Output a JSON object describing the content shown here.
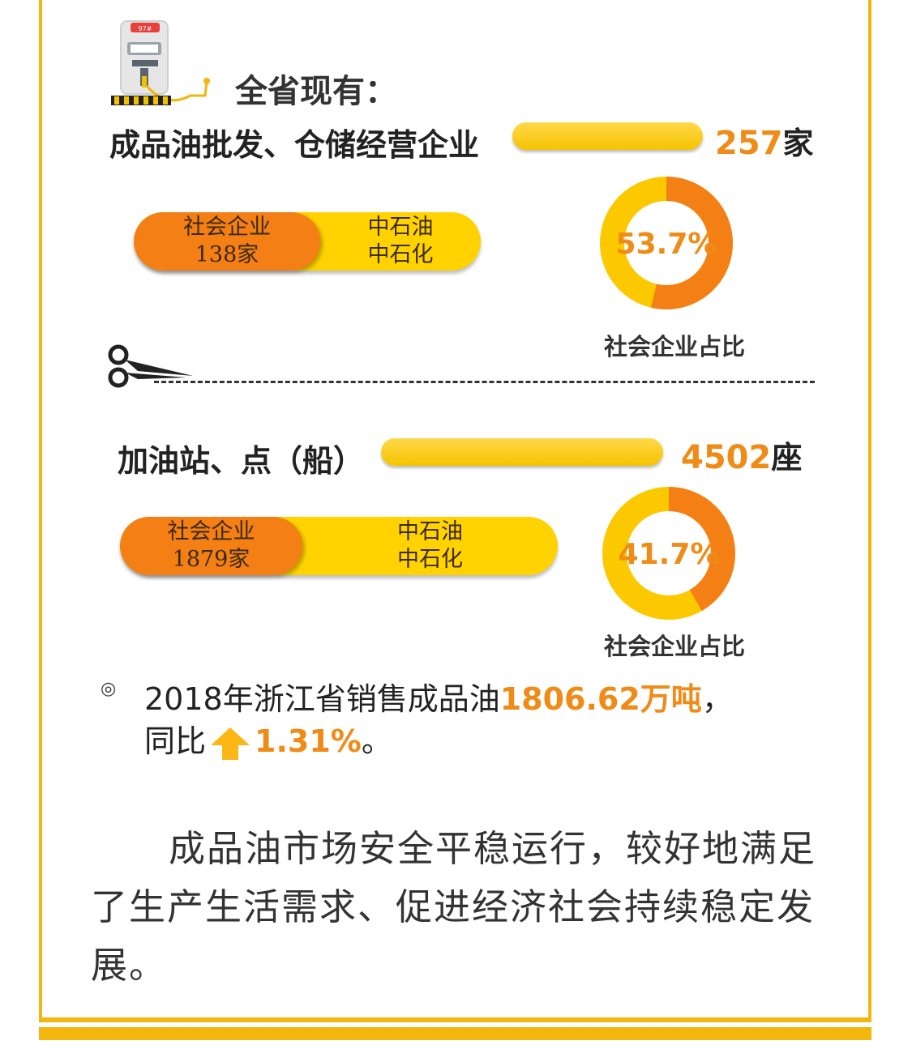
{
  "pump": {
    "sign": "97#"
  },
  "heading": "全省现有：",
  "chart_data": [
    {
      "type": "bar",
      "label": "成品油批发、仓储经营企业",
      "total": 257,
      "total_unit": "家",
      "segments": [
        {
          "name": "社会企业",
          "value": 138,
          "value_label": "138家",
          "color": "#f47f14"
        },
        {
          "name": "中石油中石化",
          "lines": [
            "中石油",
            "中石化"
          ],
          "value": 119,
          "color": "#ffd200"
        }
      ],
      "donut": {
        "percent": 53.7,
        "percent_label": "53.7%",
        "caption": "社会企业占比"
      }
    },
    {
      "type": "bar",
      "label": "加油站、点（船）",
      "total": 4502,
      "total_unit": "座",
      "segments": [
        {
          "name": "社会企业",
          "value": 1879,
          "value_label": "1879家",
          "color": "#f47f14"
        },
        {
          "name": "中石油中石化",
          "lines": [
            "中石油",
            "中石化"
          ],
          "value": 2623,
          "color": "#ffd200"
        }
      ],
      "donut": {
        "percent": 41.7,
        "percent_label": "41.7%",
        "caption": "社会企业占比"
      }
    }
  ],
  "note": {
    "bullet": "◎",
    "prefix": "2018年浙江省销售成品油",
    "amount": "1806.62万吨",
    "suffix": "，",
    "yoy_label": "同比",
    "yoy_value": "1.31%",
    "end": "。"
  },
  "paragraph": "成品油市场安全平稳运行，较好地满足了生产生活需求、促进经济社会持续稳定发展。",
  "colors": {
    "orange": "#f47f14",
    "yellow": "#ffd200",
    "text_orange": "#ef8b17",
    "frame": "#f2b60c",
    "donut_yellow": "#fcc800"
  }
}
